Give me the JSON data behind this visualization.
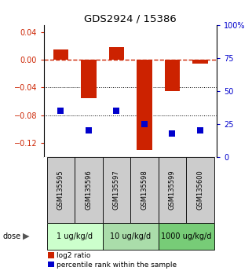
{
  "title": "GDS2924 / 15386",
  "samples": [
    "GSM135595",
    "GSM135596",
    "GSM135597",
    "GSM135598",
    "GSM135599",
    "GSM135600"
  ],
  "log2_ratio": [
    0.015,
    -0.055,
    0.018,
    -0.13,
    -0.045,
    -0.005
  ],
  "percentile_rank": [
    35,
    20,
    35,
    25,
    18,
    20
  ],
  "bar_color": "#cc2200",
  "dot_color": "#0000cc",
  "ylim_left": [
    -0.14,
    0.05
  ],
  "ylim_right": [
    0,
    100
  ],
  "yticks_left": [
    0.04,
    0,
    -0.04,
    -0.08,
    -0.12
  ],
  "yticks_right": [
    100,
    75,
    50,
    25,
    0
  ],
  "bar_width": 0.55,
  "dot_size": 28,
  "background_color": "#ffffff",
  "zero_line_color": "#cc2200",
  "grid_line_color": "#000000",
  "dose_groups": [
    {
      "label": "1 ug/kg/d",
      "start": 0,
      "end": 2,
      "color": "#ccffcc"
    },
    {
      "label": "10 ug/kg/d",
      "start": 2,
      "end": 4,
      "color": "#aaddaa"
    },
    {
      "label": "1000 ug/kg/d",
      "start": 4,
      "end": 6,
      "color": "#77cc77"
    }
  ],
  "sample_box_color": "#cccccc",
  "legend_items": [
    {
      "color": "#cc2200",
      "label": "log2 ratio"
    },
    {
      "color": "#0000cc",
      "label": "percentile rank within the sample"
    }
  ]
}
